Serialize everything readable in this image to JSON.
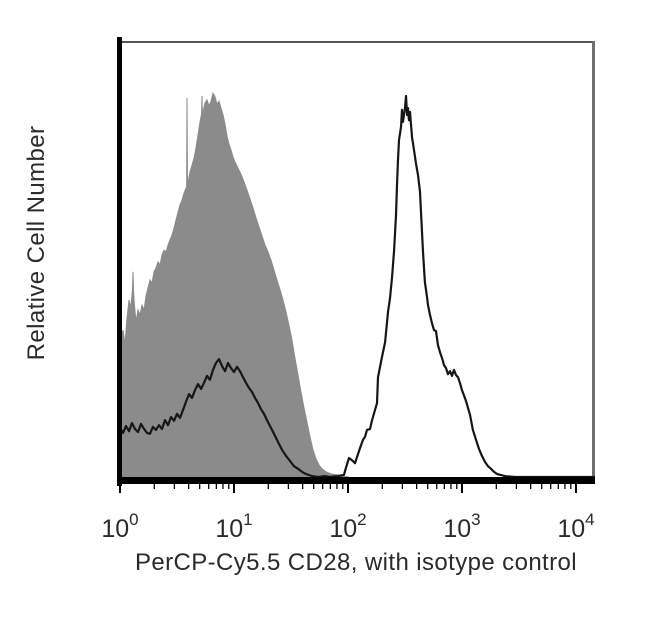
{
  "chart_data": {
    "type": "area",
    "subtype": "flow-cytometry-histogram-overlay",
    "title": "",
    "xlabel": "PerCP-Cy5.5 CD28, with isotype control",
    "ylabel": "Relative Cell Number",
    "x_scale": "log10",
    "x_range_decades": [
      0,
      4.17
    ],
    "y_units": "relative cell number (height, % of axis)",
    "grid": false,
    "legend": "none",
    "colors": {
      "isotype_fill": "#8b8b8b",
      "cd28_stroke": "#161616",
      "axis": "#000000",
      "frame_top": "#555555",
      "frame_right": "#6f6f6f",
      "text": "#2b2b2b",
      "background": "#ffffff"
    },
    "x_ticks": [
      {
        "base": "10",
        "exp": "0",
        "u": 0
      },
      {
        "base": "10",
        "exp": "1",
        "u": 1
      },
      {
        "base": "10",
        "exp": "2",
        "u": 2
      },
      {
        "base": "10",
        "exp": "3",
        "u": 3
      },
      {
        "base": "10",
        "exp": "4",
        "u": 4
      }
    ],
    "x_major_tick_decades": [
      0,
      1,
      2,
      3,
      4
    ],
    "x_minor_tick_decades": [
      0,
      1,
      2,
      3
    ],
    "x_minor_ticks_per_decade": [
      2,
      3,
      4,
      5,
      6,
      7,
      8,
      9
    ],
    "series": [
      {
        "name": "isotype control",
        "style": "filled",
        "fill": "#8b8b8b",
        "points": [
          [
            0.0,
            31.7
          ],
          [
            0.026,
            34.0
          ],
          [
            0.044,
            30.8
          ],
          [
            0.061,
            36.8
          ],
          [
            0.079,
            41.0
          ],
          [
            0.096,
            39.1
          ],
          [
            0.11,
            43.5
          ],
          [
            0.114,
            47.5
          ],
          [
            0.118,
            43.5
          ],
          [
            0.123,
            41.0
          ],
          [
            0.14,
            35.9
          ],
          [
            0.158,
            38.7
          ],
          [
            0.175,
            37.5
          ],
          [
            0.193,
            39.8
          ],
          [
            0.211,
            38.7
          ],
          [
            0.228,
            41.9
          ],
          [
            0.246,
            43.8
          ],
          [
            0.263,
            45.6
          ],
          [
            0.281,
            44.9
          ],
          [
            0.298,
            47.5
          ],
          [
            0.316,
            48.4
          ],
          [
            0.333,
            49.8
          ],
          [
            0.351,
            49.1
          ],
          [
            0.368,
            51.4
          ],
          [
            0.386,
            52.5
          ],
          [
            0.404,
            52.1
          ],
          [
            0.421,
            53.7
          ],
          [
            0.439,
            54.9
          ],
          [
            0.456,
            56.0
          ],
          [
            0.474,
            57.6
          ],
          [
            0.491,
            59.5
          ],
          [
            0.509,
            61.3
          ],
          [
            0.526,
            63.0
          ],
          [
            0.544,
            64.1
          ],
          [
            0.561,
            65.7
          ],
          [
            0.579,
            66.9
          ],
          [
            0.584,
            66.9
          ],
          [
            0.588,
            87.7
          ],
          [
            0.592,
            67.5
          ],
          [
            0.596,
            68.1
          ],
          [
            0.614,
            70.6
          ],
          [
            0.632,
            72.2
          ],
          [
            0.649,
            73.8
          ],
          [
            0.667,
            76.2
          ],
          [
            0.684,
            79.2
          ],
          [
            0.702,
            82.2
          ],
          [
            0.715,
            84.0
          ],
          [
            0.719,
            88.2
          ],
          [
            0.723,
            84.0
          ],
          [
            0.728,
            84.5
          ],
          [
            0.746,
            86.6
          ],
          [
            0.763,
            87.3
          ],
          [
            0.781,
            85.9
          ],
          [
            0.798,
            87.0
          ],
          [
            0.816,
            88.9
          ],
          [
            0.833,
            88.0
          ],
          [
            0.851,
            86.3
          ],
          [
            0.868,
            87.0
          ],
          [
            0.886,
            85.4
          ],
          [
            0.904,
            83.8
          ],
          [
            0.921,
            81.7
          ],
          [
            0.939,
            78.9
          ],
          [
            0.956,
            77.1
          ],
          [
            0.974,
            75.7
          ],
          [
            0.991,
            74.1
          ],
          [
            1.009,
            72.9
          ],
          [
            1.035,
            71.5
          ],
          [
            1.061,
            70.1
          ],
          [
            1.088,
            68.3
          ],
          [
            1.114,
            66.4
          ],
          [
            1.14,
            64.4
          ],
          [
            1.167,
            62.3
          ],
          [
            1.193,
            60.0
          ],
          [
            1.219,
            57.9
          ],
          [
            1.246,
            55.8
          ],
          [
            1.272,
            53.7
          ],
          [
            1.298,
            52.1
          ],
          [
            1.325,
            50.2
          ],
          [
            1.351,
            47.9
          ],
          [
            1.377,
            45.6
          ],
          [
            1.404,
            43.3
          ],
          [
            1.43,
            41.0
          ],
          [
            1.456,
            38.2
          ],
          [
            1.482,
            35.2
          ],
          [
            1.509,
            31.7
          ],
          [
            1.535,
            27.5
          ],
          [
            1.561,
            23.6
          ],
          [
            1.588,
            19.7
          ],
          [
            1.614,
            16.0
          ],
          [
            1.64,
            12.7
          ],
          [
            1.667,
            9.3
          ],
          [
            1.693,
            6.3
          ],
          [
            1.719,
            4.2
          ],
          [
            1.746,
            2.8
          ],
          [
            1.772,
            1.9
          ],
          [
            1.807,
            1.2
          ],
          [
            1.851,
            0.7
          ],
          [
            1.904,
            0.5
          ],
          [
            1.956,
            0.2
          ],
          [
            2.009,
            0.0
          ]
        ]
      },
      {
        "name": "CD28",
        "style": "open",
        "stroke": "#161616",
        "points": [
          [
            0.0,
            11.3
          ],
          [
            0.026,
            10.2
          ],
          [
            0.053,
            11.8
          ],
          [
            0.079,
            10.6
          ],
          [
            0.105,
            12.5
          ],
          [
            0.132,
            11.1
          ],
          [
            0.158,
            10.4
          ],
          [
            0.184,
            12.3
          ],
          [
            0.211,
            11.1
          ],
          [
            0.237,
            10.2
          ],
          [
            0.263,
            10.0
          ],
          [
            0.289,
            11.6
          ],
          [
            0.316,
            10.9
          ],
          [
            0.342,
            12.0
          ],
          [
            0.368,
            11.1
          ],
          [
            0.395,
            13.2
          ],
          [
            0.421,
            12.0
          ],
          [
            0.447,
            13.9
          ],
          [
            0.474,
            13.0
          ],
          [
            0.5,
            14.6
          ],
          [
            0.526,
            13.7
          ],
          [
            0.553,
            15.5
          ],
          [
            0.579,
            17.4
          ],
          [
            0.605,
            19.2
          ],
          [
            0.632,
            18.3
          ],
          [
            0.658,
            20.1
          ],
          [
            0.684,
            21.5
          ],
          [
            0.711,
            20.4
          ],
          [
            0.737,
            21.8
          ],
          [
            0.763,
            23.4
          ],
          [
            0.789,
            22.5
          ],
          [
            0.816,
            24.8
          ],
          [
            0.842,
            26.4
          ],
          [
            0.868,
            27.3
          ],
          [
            0.895,
            25.7
          ],
          [
            0.921,
            24.5
          ],
          [
            0.947,
            26.4
          ],
          [
            0.974,
            25.2
          ],
          [
            1.0,
            24.3
          ],
          [
            1.026,
            25.5
          ],
          [
            1.053,
            24.5
          ],
          [
            1.079,
            23.1
          ],
          [
            1.105,
            21.8
          ],
          [
            1.132,
            20.6
          ],
          [
            1.158,
            19.7
          ],
          [
            1.184,
            18.3
          ],
          [
            1.211,
            17.1
          ],
          [
            1.237,
            15.7
          ],
          [
            1.263,
            14.6
          ],
          [
            1.289,
            13.2
          ],
          [
            1.316,
            11.8
          ],
          [
            1.351,
            10.0
          ],
          [
            1.386,
            8.1
          ],
          [
            1.421,
            6.3
          ],
          [
            1.456,
            4.9
          ],
          [
            1.491,
            3.7
          ],
          [
            1.526,
            2.5
          ],
          [
            1.561,
            1.9
          ],
          [
            1.596,
            1.2
          ],
          [
            1.632,
            0.7
          ],
          [
            1.684,
            0.2
          ],
          [
            1.737,
            0.0
          ],
          [
            1.798,
            0.2
          ],
          [
            1.842,
            0.0
          ],
          [
            1.912,
            0.2
          ],
          [
            1.965,
            0.5
          ],
          [
            1.982,
            2.1
          ],
          [
            2.009,
            4.4
          ],
          [
            2.035,
            3.9
          ],
          [
            2.061,
            3.2
          ],
          [
            2.079,
            4.6
          ],
          [
            2.105,
            6.7
          ],
          [
            2.132,
            8.6
          ],
          [
            2.149,
            9.3
          ],
          [
            2.167,
            10.9
          ],
          [
            2.193,
            11.1
          ],
          [
            2.211,
            13.2
          ],
          [
            2.237,
            15.5
          ],
          [
            2.254,
            17.1
          ],
          [
            2.263,
            23.1
          ],
          [
            2.298,
            27.8
          ],
          [
            2.325,
            31.2
          ],
          [
            2.351,
            38.2
          ],
          [
            2.368,
            41.4
          ],
          [
            2.386,
            46.1
          ],
          [
            2.404,
            52.5
          ],
          [
            2.421,
            60.6
          ],
          [
            2.43,
            67.6
          ],
          [
            2.439,
            73.4
          ],
          [
            2.447,
            78.0
          ],
          [
            2.465,
            81.0
          ],
          [
            2.474,
            85.0
          ],
          [
            2.482,
            82.2
          ],
          [
            2.5,
            85.4
          ],
          [
            2.509,
            88.2
          ],
          [
            2.518,
            83.8
          ],
          [
            2.526,
            85.4
          ],
          [
            2.535,
            82.6
          ],
          [
            2.544,
            84.5
          ],
          [
            2.561,
            78.7
          ],
          [
            2.579,
            75.7
          ],
          [
            2.596,
            72.7
          ],
          [
            2.614,
            69.9
          ],
          [
            2.632,
            66.0
          ],
          [
            2.64,
            61.3
          ],
          [
            2.649,
            56.7
          ],
          [
            2.658,
            52.1
          ],
          [
            2.667,
            48.4
          ],
          [
            2.675,
            45.1
          ],
          [
            2.693,
            41.7
          ],
          [
            2.702,
            39.8
          ],
          [
            2.719,
            37.5
          ],
          [
            2.737,
            35.6
          ],
          [
            2.754,
            34.0
          ],
          [
            2.772,
            33.8
          ],
          [
            2.789,
            30.6
          ],
          [
            2.807,
            28.9
          ],
          [
            2.825,
            27.5
          ],
          [
            2.842,
            25.9
          ],
          [
            2.86,
            25.2
          ],
          [
            2.877,
            23.8
          ],
          [
            2.895,
            24.5
          ],
          [
            2.912,
            23.4
          ],
          [
            2.93,
            24.8
          ],
          [
            2.947,
            23.6
          ],
          [
            2.965,
            23.1
          ],
          [
            2.982,
            21.8
          ],
          [
            3.0,
            20.1
          ],
          [
            3.018,
            18.8
          ],
          [
            3.035,
            17.6
          ],
          [
            3.053,
            16.0
          ],
          [
            3.07,
            14.4
          ],
          [
            3.096,
            10.9
          ],
          [
            3.123,
            8.6
          ],
          [
            3.149,
            6.5
          ],
          [
            3.175,
            4.9
          ],
          [
            3.202,
            3.5
          ],
          [
            3.228,
            2.5
          ],
          [
            3.254,
            1.9
          ],
          [
            3.281,
            1.2
          ],
          [
            3.307,
            0.7
          ],
          [
            3.333,
            0.5
          ],
          [
            3.377,
            0.2
          ],
          [
            3.465,
            0.0
          ],
          [
            3.7,
            0.0
          ],
          [
            4.0,
            0.0
          ],
          [
            4.158,
            0.0
          ]
        ]
      }
    ]
  }
}
